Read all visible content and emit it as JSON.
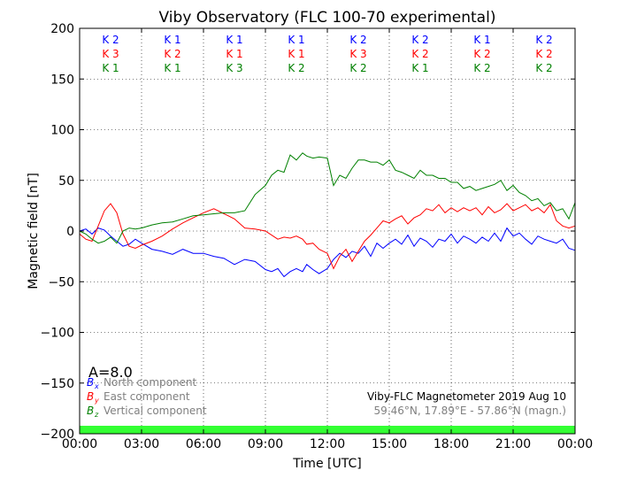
{
  "chart_data": {
    "type": "line",
    "title": "Viby Observatory (FLC 100-70 experimental)",
    "xlabel": "Time [UTC]",
    "ylabel": "Magnetic field [nT]",
    "xlim": [
      0,
      24
    ],
    "ylim": [
      -200,
      200
    ],
    "x_ticks": [
      0,
      3,
      6,
      9,
      12,
      15,
      18,
      21,
      24
    ],
    "x_tick_labels": [
      "00:00",
      "03:00",
      "06:00",
      "09:00",
      "12:00",
      "15:00",
      "18:00",
      "21:00",
      "00:00"
    ],
    "y_ticks": [
      -200,
      -150,
      -100,
      -50,
      0,
      50,
      100,
      150,
      200
    ],
    "y_tick_labels": [
      "−200",
      "−150",
      "−100",
      "−50",
      "0",
      "50",
      "100",
      "150",
      "200"
    ],
    "grid": true,
    "k_index_x": [
      1.5,
      4.5,
      7.5,
      10.5,
      13.5,
      16.5,
      19.5,
      22.5
    ],
    "k_index_rows": [
      {
        "color": "#0000ff",
        "labels": [
          "K 2",
          "K 1",
          "K 1",
          "K 1",
          "K 2",
          "K 2",
          "K 1",
          "K 2"
        ]
      },
      {
        "color": "#ff0000",
        "labels": [
          "K 3",
          "K 2",
          "K 1",
          "K 1",
          "K 3",
          "K 2",
          "K 2",
          "K 2"
        ]
      },
      {
        "color": "#008000",
        "labels": [
          "K 1",
          "K 1",
          "K 3",
          "K 2",
          "K 2",
          "K 1",
          "K 2",
          "K 2"
        ]
      }
    ],
    "activity_index": "A=8.0",
    "activity_band_color": "#33ff33",
    "series": [
      {
        "name": "North component",
        "symbol": "B",
        "subscript": "x",
        "color": "#0000ff",
        "x": [
          0,
          0.3,
          0.6,
          0.9,
          1.2,
          1.5,
          1.8,
          2.1,
          2.4,
          2.7,
          3.0,
          3.5,
          4.0,
          4.5,
          5.0,
          5.5,
          6.0,
          6.5,
          7.0,
          7.5,
          8.0,
          8.5,
          9.0,
          9.3,
          9.6,
          9.9,
          10.2,
          10.5,
          10.8,
          11.0,
          11.3,
          11.6,
          12.0,
          12.3,
          12.6,
          12.9,
          13.2,
          13.5,
          13.8,
          14.1,
          14.4,
          14.7,
          15.0,
          15.3,
          15.6,
          15.9,
          16.2,
          16.5,
          16.8,
          17.1,
          17.4,
          17.7,
          18.0,
          18.3,
          18.6,
          18.9,
          19.2,
          19.5,
          19.8,
          20.1,
          20.4,
          20.7,
          21.0,
          21.3,
          21.6,
          21.9,
          22.2,
          22.5,
          22.8,
          23.1,
          23.4,
          23.7,
          24.0
        ],
        "values": [
          0,
          2,
          -3,
          3,
          1,
          -5,
          -10,
          -15,
          -13,
          -8,
          -12,
          -18,
          -20,
          -23,
          -18,
          -22,
          -22,
          -25,
          -27,
          -33,
          -28,
          -30,
          -38,
          -40,
          -37,
          -45,
          -40,
          -37,
          -40,
          -33,
          -38,
          -42,
          -37,
          -28,
          -22,
          -26,
          -20,
          -22,
          -15,
          -25,
          -12,
          -17,
          -12,
          -8,
          -13,
          -4,
          -15,
          -7,
          -10,
          -16,
          -8,
          -10,
          -3,
          -12,
          -5,
          -8,
          -12,
          -6,
          -10,
          -2,
          -10,
          3,
          -5,
          -2,
          -8,
          -13,
          -5,
          -8,
          -10,
          -12,
          -8,
          -17,
          -19
        ]
      },
      {
        "name": "East component",
        "symbol": "B",
        "subscript": "y",
        "color": "#ff0000",
        "x": [
          0,
          0.3,
          0.6,
          0.9,
          1.2,
          1.5,
          1.8,
          2.1,
          2.4,
          2.7,
          3.0,
          3.5,
          4.0,
          4.5,
          5.0,
          5.5,
          6.0,
          6.5,
          7.0,
          7.5,
          8.0,
          8.5,
          9.0,
          9.3,
          9.6,
          9.9,
          10.2,
          10.5,
          10.8,
          11.0,
          11.3,
          11.6,
          12.0,
          12.3,
          12.6,
          12.9,
          13.2,
          13.5,
          13.8,
          14.1,
          14.4,
          14.7,
          15.0,
          15.3,
          15.6,
          15.9,
          16.2,
          16.5,
          16.8,
          17.1,
          17.4,
          17.7,
          18.0,
          18.3,
          18.6,
          18.9,
          19.2,
          19.5,
          19.8,
          20.1,
          20.4,
          20.7,
          21.0,
          21.3,
          21.6,
          21.9,
          22.2,
          22.5,
          22.8,
          23.1,
          23.4,
          23.7,
          24.0
        ],
        "values": [
          -3,
          -8,
          -10,
          5,
          20,
          27,
          18,
          -3,
          -15,
          -17,
          -14,
          -10,
          -5,
          2,
          8,
          13,
          18,
          22,
          17,
          12,
          3,
          2,
          0,
          -4,
          -8,
          -6,
          -7,
          -5,
          -8,
          -13,
          -12,
          -18,
          -22,
          -37,
          -25,
          -18,
          -30,
          -20,
          -10,
          -4,
          3,
          10,
          8,
          12,
          15,
          7,
          13,
          16,
          22,
          20,
          26,
          18,
          23,
          19,
          23,
          20,
          23,
          16,
          24,
          18,
          21,
          27,
          20,
          23,
          26,
          20,
          23,
          18,
          26,
          10,
          5,
          3,
          5
        ]
      },
      {
        "name": "Vertical component",
        "symbol": "B",
        "subscript": "z",
        "color": "#008000",
        "x": [
          0,
          0.3,
          0.6,
          0.9,
          1.2,
          1.5,
          1.8,
          2.1,
          2.4,
          2.7,
          3.0,
          3.5,
          4.0,
          4.5,
          5.0,
          5.5,
          6.0,
          6.5,
          7.0,
          7.5,
          8.0,
          8.5,
          9.0,
          9.3,
          9.6,
          9.9,
          10.2,
          10.5,
          10.8,
          11.0,
          11.3,
          11.6,
          12.0,
          12.3,
          12.6,
          12.9,
          13.2,
          13.5,
          13.8,
          14.1,
          14.4,
          14.7,
          15.0,
          15.3,
          15.6,
          15.9,
          16.2,
          16.5,
          16.8,
          17.1,
          17.4,
          17.7,
          18.0,
          18.3,
          18.6,
          18.9,
          19.2,
          19.5,
          19.8,
          20.1,
          20.4,
          20.7,
          21.0,
          21.3,
          21.6,
          21.9,
          22.2,
          22.5,
          22.8,
          23.1,
          23.4,
          23.7,
          24.0
        ],
        "values": [
          0,
          -3,
          -8,
          -12,
          -10,
          -6,
          -12,
          0,
          3,
          2,
          3,
          6,
          8,
          9,
          12,
          15,
          16,
          17,
          18,
          18,
          20,
          36,
          45,
          55,
          60,
          58,
          75,
          70,
          77,
          74,
          72,
          73,
          72,
          45,
          55,
          52,
          62,
          70,
          70,
          68,
          68,
          65,
          70,
          60,
          58,
          55,
          52,
          60,
          55,
          55,
          52,
          52,
          48,
          48,
          42,
          44,
          40,
          42,
          44,
          46,
          50,
          40,
          45,
          38,
          35,
          30,
          32,
          25,
          28,
          20,
          22,
          12,
          28
        ]
      }
    ],
    "footer": {
      "title": "Viby-FLC Magnetometer 2019 Aug 10",
      "coords": "59.46°N, 17.89°E - 57.86°N (magn.)"
    }
  }
}
